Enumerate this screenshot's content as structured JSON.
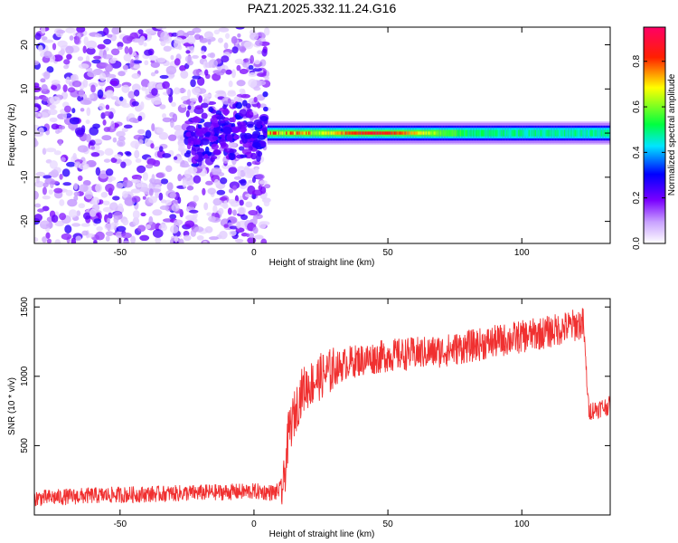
{
  "title": "PAZ1.2025.332.11.24.G16",
  "chart_data": [
    {
      "type": "heatmap",
      "name": "spectrogram",
      "xlabel": "Height of straight line (km)",
      "ylabel": "Frequency (Hz)",
      "xlim": [
        -82,
        133
      ],
      "ylim": [
        -25,
        24
      ],
      "xticks": [
        -50,
        0,
        50,
        100
      ],
      "yticks": [
        -20,
        -10,
        0,
        10,
        20
      ],
      "colorbar": {
        "label": "Normalized spectral amplitude",
        "range": [
          0.0,
          0.95
        ],
        "ticks": [
          0.0,
          0.2,
          0.4,
          0.6,
          0.8
        ],
        "colors": [
          "#ffffff",
          "#7a00ff",
          "#0000ff",
          "#00ffff",
          "#00ff00",
          "#ffff00",
          "#ff0000",
          "#ff0066"
        ]
      },
      "noise_region_km": [
        -82,
        5
      ],
      "dense_cluster_km": [
        -25,
        5
      ],
      "signal_band": {
        "start_km": 5,
        "end_km": 133,
        "center_hz": 0,
        "halfwidth_hz": 1.2,
        "peak_km": 45,
        "peak_amplitude": 0.9,
        "mean_amplitude": 0.5
      }
    },
    {
      "type": "line",
      "name": "snr",
      "xlabel": "Height of straight line (km)",
      "ylabel": "SNR (10 * v/v)",
      "xlim": [
        -82,
        133
      ],
      "ylim": [
        0,
        1560
      ],
      "xticks": [
        -50,
        0,
        50,
        100
      ],
      "yticks": [
        500,
        1000,
        1500
      ],
      "color": "#f03030",
      "series": {
        "name": "SNR",
        "x": [
          -82,
          -60,
          -40,
          -20,
          0,
          8,
          11,
          13,
          18,
          25,
          35,
          50,
          70,
          90,
          110,
          122,
          123,
          125,
          133
        ],
        "y": [
          120,
          140,
          150,
          160,
          170,
          160,
          200,
          600,
          900,
          1000,
          1100,
          1150,
          1180,
          1250,
          1320,
          1380,
          1380,
          750,
          790
        ]
      }
    }
  ]
}
